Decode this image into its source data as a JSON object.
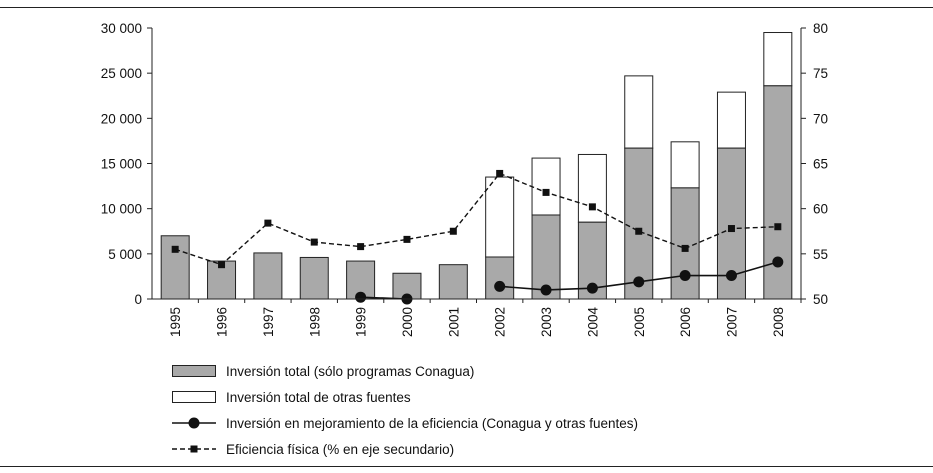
{
  "chart_data": {
    "type": "bar+line",
    "categories": [
      "1995",
      "1996",
      "1997",
      "1998",
      "1999",
      "2000",
      "2001",
      "2002",
      "2003",
      "2004",
      "2005",
      "2006",
      "2007",
      "2008"
    ],
    "y_left": {
      "min": 0,
      "max": 30000,
      "ticks": [
        0,
        5000,
        10000,
        15000,
        20000,
        25000,
        30000
      ],
      "tick_labels": [
        "0",
        "5 000",
        "10 000",
        "15 000",
        "20 000",
        "25 000",
        "30 000"
      ]
    },
    "y_right": {
      "min": 50,
      "max": 80,
      "ticks": [
        50,
        55,
        60,
        65,
        70,
        75,
        80
      ],
      "tick_labels": [
        "50",
        "55",
        "60",
        "65",
        "70",
        "75",
        "80"
      ]
    },
    "series": [
      {
        "name": "Inversión total (sólo programas Conagua)",
        "kind": "bar",
        "axis": "left",
        "color": "#a9a9a9",
        "values": [
          7000,
          4200,
          5100,
          4600,
          4200,
          2850,
          3800,
          4650,
          9300,
          8500,
          16700,
          12300,
          16700,
          23600
        ]
      },
      {
        "name": "Inversión total de otras fuentes",
        "kind": "bar-stack",
        "axis": "left",
        "color": "#ffffff",
        "values": [
          0,
          0,
          0,
          0,
          0,
          0,
          0,
          8850,
          6300,
          7500,
          8000,
          5100,
          6200,
          5900
        ]
      },
      {
        "name": "Inversión en mejoramiento de la eficiencia (Conagua y otras fuentes)",
        "kind": "line",
        "axis": "left",
        "color": "#111111",
        "values": [
          null,
          null,
          null,
          null,
          200,
          0,
          null,
          1400,
          1000,
          1200,
          1900,
          2600,
          2600,
          4100
        ]
      },
      {
        "name": "Eficiencia física (% en eje secundario)",
        "kind": "dashed-line",
        "axis": "right",
        "color": "#111111",
        "values": [
          55.5,
          53.8,
          58.4,
          56.3,
          55.8,
          56.6,
          57.5,
          63.9,
          61.8,
          60.2,
          57.5,
          55.6,
          57.8,
          58.0
        ]
      }
    ],
    "legend_position": "bottom"
  }
}
